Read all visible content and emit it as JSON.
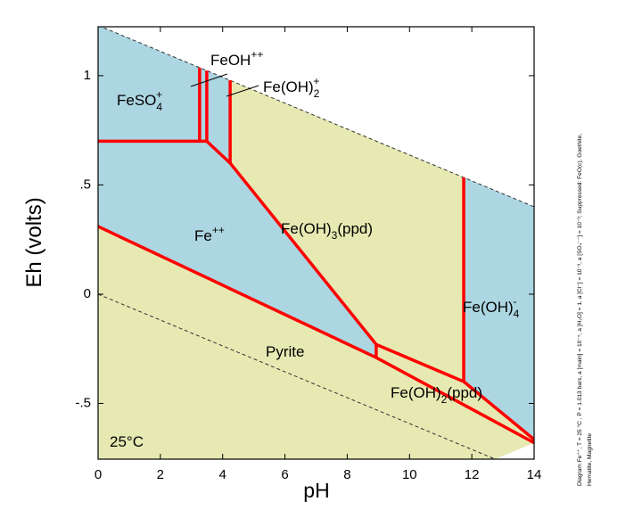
{
  "chart_data": {
    "type": "phase-diagram",
    "x_label": "pH",
    "y_label": "Eh (volts)",
    "annotation": "25°C",
    "side_note": [
      "Diagram Fe⁺⁺, T = 25 °C , P = 1.013 bars, a [main] = 10⁻⁵, a [H₂O] = 1, a [Cl⁻] = 10⁻³, a [SO₄⁻⁻] = 10⁻³; Suppressed: FeO(c), Goethite,",
      "Hematite, Magnetite"
    ],
    "xlim": [
      0,
      14
    ],
    "ylim": [
      -0.755,
      1.224
    ],
    "xticks": [
      0,
      2,
      4,
      6,
      8,
      10,
      12,
      14
    ],
    "yticks": [
      {
        "value": -0.5,
        "label": "-.5"
      },
      0,
      {
        "value": 0.5,
        "label": ".5"
      },
      1
    ],
    "regions": [
      {
        "label": [
          {
            "text": "FeSO"
          },
          {
            "text": "4",
            "shift": "sub"
          },
          {
            "text": "+",
            "shift": "sup"
          }
        ],
        "color": "#acd6e2",
        "x": [
          0,
          3.26,
          3.26,
          0
        ],
        "y": [
          1.23,
          1.037,
          0.7,
          0.7
        ]
      },
      {
        "label": [
          {
            "text": "FeOH"
          },
          {
            "text": "++",
            "shift": "sup"
          }
        ],
        "color": "#acd6e2",
        "x": [
          3.26,
          3.49,
          3.49,
          3.26
        ],
        "y": [
          1.037,
          1.023,
          0.7,
          0.7
        ]
      },
      {
        "label": [
          {
            "text": "Fe(OH)"
          },
          {
            "text": "2",
            "shift": "sub"
          },
          {
            "text": "+",
            "shift": "sup"
          }
        ],
        "color": "#acd6e2",
        "x": [
          3.49,
          4.24,
          4.24,
          3.49
        ],
        "y": [
          1.023,
          0.979,
          0.6,
          0.7
        ]
      },
      {
        "label": [
          {
            "text": "Fe(OH)"
          },
          {
            "text": "3",
            "shift": "sub"
          },
          {
            "text": "(ppd)"
          }
        ],
        "color": "#e6e9b2",
        "x": [
          4.24,
          11.74,
          11.74,
          8.93,
          4.24
        ],
        "y": [
          0.979,
          0.535,
          -0.4,
          -0.23,
          0.6
        ]
      },
      {
        "label": [
          {
            "text": "Fe(OH)"
          },
          {
            "text": "4",
            "shift": "sub"
          },
          {
            "text": "-",
            "shift": "sup"
          }
        ],
        "color": "#acd6e2",
        "x": [
          11.74,
          14,
          14,
          11.74
        ],
        "y": [
          0.535,
          0.4,
          -0.665,
          -0.4
        ]
      },
      {
        "label": [
          {
            "text": "Fe(OH)"
          },
          {
            "text": "2",
            "shift": "sub"
          },
          {
            "text": "(ppd)"
          }
        ],
        "color": "#e6e9b2",
        "x": [
          8.93,
          11.74,
          14,
          14,
          8.93
        ],
        "y": [
          -0.23,
          -0.4,
          -0.665,
          -0.68,
          -0.29
        ]
      },
      {
        "label": [
          {
            "text": "Fe"
          },
          {
            "text": "++",
            "shift": "sup"
          }
        ],
        "color": "#acd6e2",
        "x": [
          0,
          3.26,
          3.49,
          4.24,
          8.93,
          8.93,
          0
        ],
        "y": [
          0.7,
          0.7,
          0.7,
          0.6,
          -0.23,
          -0.29,
          0.31
        ]
      },
      {
        "label": [
          {
            "text": "Pyrite"
          }
        ],
        "color": "#e6e9b2",
        "x": [
          0,
          8.93,
          14,
          12.75,
          0
        ],
        "y": [
          0.31,
          -0.29,
          -0.68,
          -0.755,
          -0.755
        ]
      }
    ],
    "boundaries": [
      {
        "x": [
          0,
          3.26,
          3.49
        ],
        "y": [
          0.7,
          0.7,
          0.7
        ]
      },
      {
        "x": [
          3.26,
          3.26
        ],
        "y": [
          0.7,
          1.037
        ]
      },
      {
        "x": [
          3.49,
          3.49
        ],
        "y": [
          0.7,
          1.023
        ]
      },
      {
        "x": [
          4.24,
          4.24
        ],
        "y": [
          0.6,
          0.979
        ]
      },
      {
        "x": [
          3.49,
          4.24,
          8.93,
          11.74
        ],
        "y": [
          0.7,
          0.6,
          -0.23,
          -0.4
        ]
      },
      {
        "x": [
          11.74,
          14
        ],
        "y": [
          -0.4,
          -0.665
        ]
      },
      {
        "x": [
          11.74,
          11.74
        ],
        "y": [
          -0.4,
          0.535
        ]
      },
      {
        "x": [
          0,
          8.93,
          14
        ],
        "y": [
          0.31,
          -0.29,
          -0.68
        ]
      },
      {
        "x": [
          8.93,
          8.93
        ],
        "y": [
          -0.29,
          -0.23
        ]
      }
    ],
    "boundary_color": "#ff0000",
    "water_lines": [
      {
        "x": [
          0,
          14
        ],
        "y": [
          1.23,
          0.4
        ]
      },
      {
        "x": [
          0,
          12.75
        ],
        "y": [
          0,
          -0.755
        ]
      }
    ]
  }
}
